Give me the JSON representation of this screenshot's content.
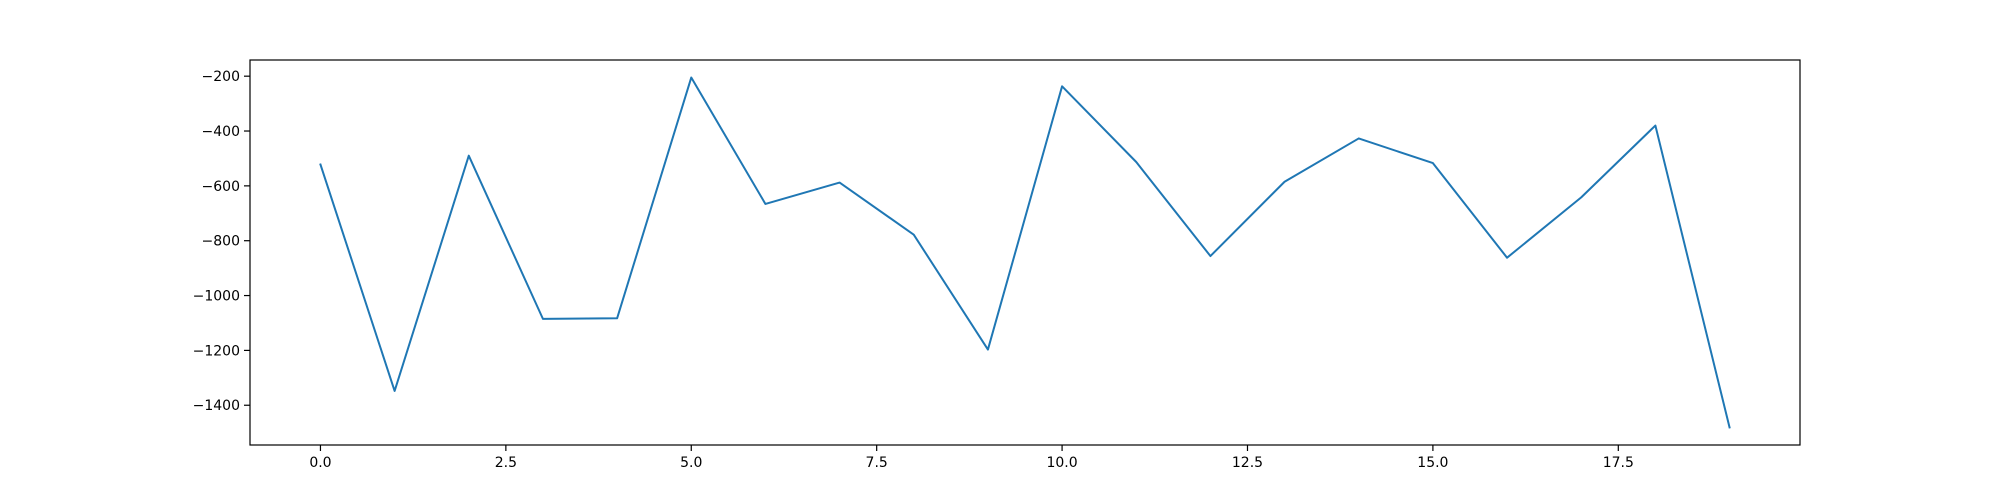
{
  "chart_data": {
    "type": "line",
    "title": "",
    "xlabel": "",
    "ylabel": "",
    "x": [
      0,
      1,
      2,
      3,
      4,
      5,
      6,
      7,
      8,
      9,
      10,
      11,
      12,
      13,
      14,
      15,
      16,
      17,
      18,
      19
    ],
    "series": [
      {
        "color": "#1f77b4",
        "values": [
          -522,
          -1348,
          -490,
          -1085,
          -1083,
          -205,
          -666,
          -588,
          -778,
          -1197,
          -237,
          -513,
          -856,
          -585,
          -427,
          -517,
          -862,
          -642,
          -380,
          -1481
        ]
      }
    ],
    "xlim": [
      -0.95,
      19.95
    ],
    "ylim": [
      -1545,
      -141
    ],
    "x_ticks": [
      0,
      2.5,
      5,
      7.5,
      10,
      12.5,
      15,
      17.5
    ],
    "x_tick_labels": [
      "0.0",
      "2.5",
      "5.0",
      "7.5",
      "10.0",
      "12.5",
      "15.0",
      "17.5"
    ],
    "y_ticks": [
      -200,
      -400,
      -600,
      -800,
      -1000,
      -1200,
      -1400
    ],
    "y_tick_labels": [
      "−200",
      "−400",
      "−600",
      "−800",
      "−1000",
      "−1200",
      "−1400"
    ],
    "grid": false,
    "legend": "none"
  }
}
